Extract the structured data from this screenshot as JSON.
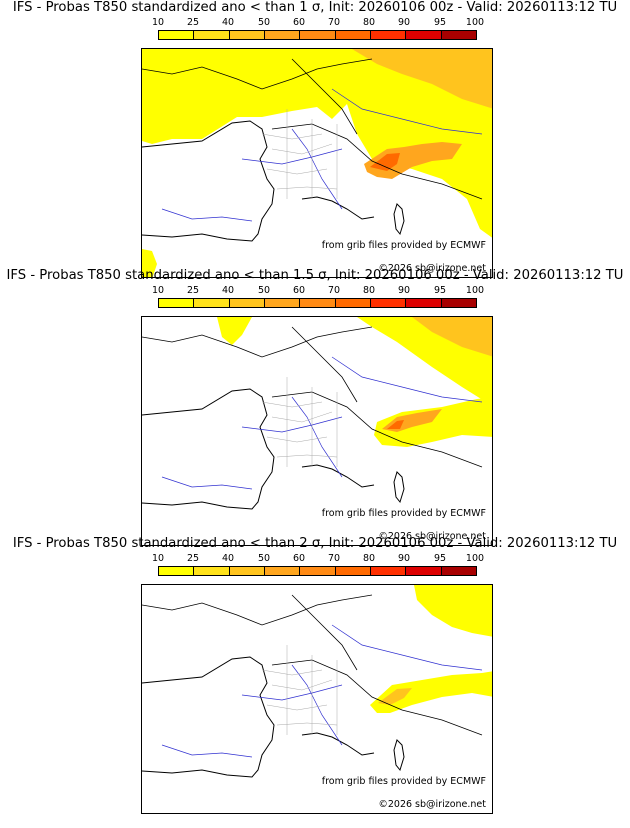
{
  "colorbar": {
    "ticks": [
      "10",
      "25",
      "40",
      "50",
      "60",
      "70",
      "80",
      "90",
      "95",
      "100"
    ],
    "colors": [
      "#ffff00",
      "#ffe21a",
      "#ffc41e",
      "#ffa61e",
      "#ff8a14",
      "#ff6a00",
      "#ff3000",
      "#dd0000",
      "#a80000",
      "#6e0000"
    ]
  },
  "panels": [
    {
      "title": "IFS - Probas T850  standardized ano < than 1 σ, Init: 20260106 00z - Valid: 20260113:12 TU",
      "credit_line1": "from grib files provided by ECMWF",
      "credit_line2": "©2026 sb@irizone.net"
    },
    {
      "title": "IFS - Probas T850  standardized ano < than 1.5 σ, Init: 20260106 00z - Valid: 20260113:12 TU",
      "credit_line1": "from grib files provided by ECMWF",
      "credit_line2": "©2026 sb@irizone.net"
    },
    {
      "title": "IFS - Probas T850  standardized ano < than 2 σ, Init: 20260106 00z - Valid: 20260113:12 TU",
      "credit_line1": "from grib files provided by ECMWF",
      "credit_line2": "©2026 sb@irizone.net"
    }
  ]
}
